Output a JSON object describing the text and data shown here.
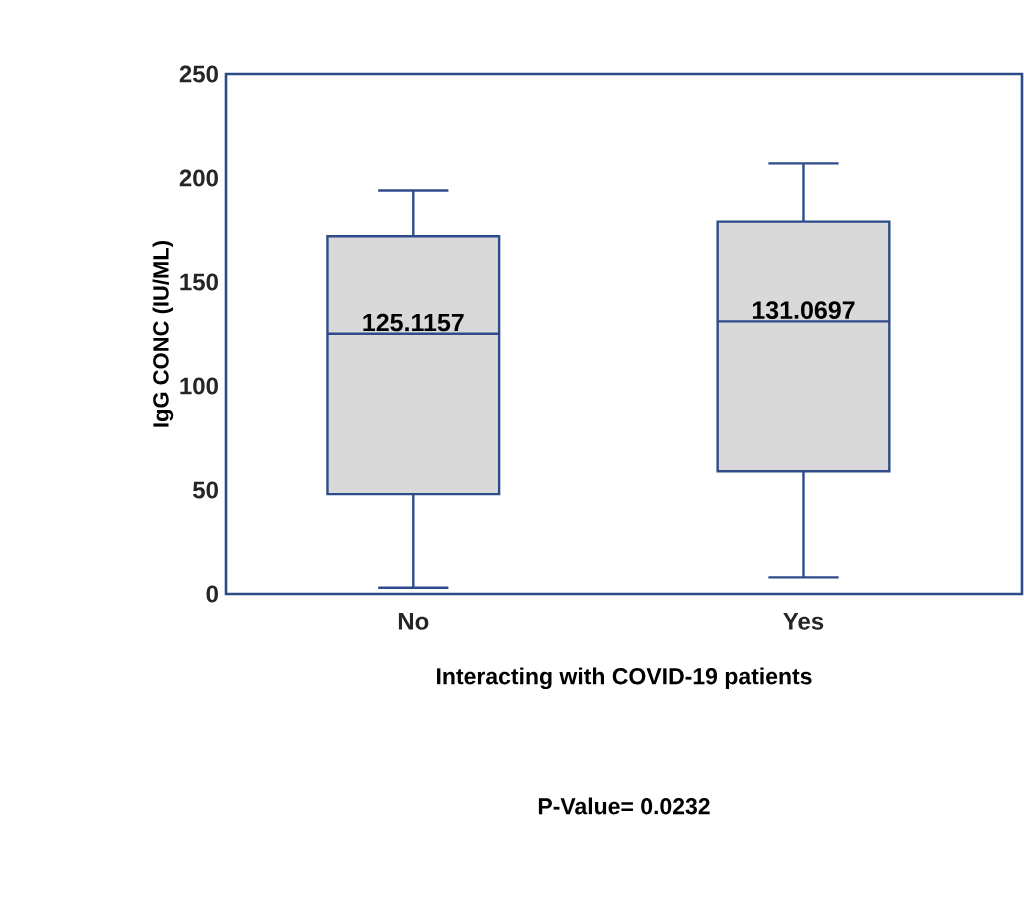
{
  "chart_data": {
    "type": "box",
    "xlabel": "Interacting with COVID-19 patients",
    "ylabel": "IgG CONC (IU/ML)",
    "categories": [
      "No",
      "Yes"
    ],
    "boxes": [
      {
        "low": 3,
        "q1": 48,
        "median": 125.1157,
        "q3": 172,
        "high": 194
      },
      {
        "low": 8,
        "q1": 59,
        "median": 131.0697,
        "q3": 179,
        "high": 207
      }
    ],
    "color": "#2f4b8a",
    "ylim": [
      0,
      250
    ],
    "yticks": [
      0,
      50,
      100,
      150,
      200,
      250
    ],
    "grid": false,
    "annotations": [
      {
        "text": "125.1157",
        "x": "No",
        "y": 125.1157
      },
      {
        "text": "131.0697",
        "x": "Yes",
        "y": 131.0697
      },
      "P-Value= 0.0232"
    ]
  }
}
